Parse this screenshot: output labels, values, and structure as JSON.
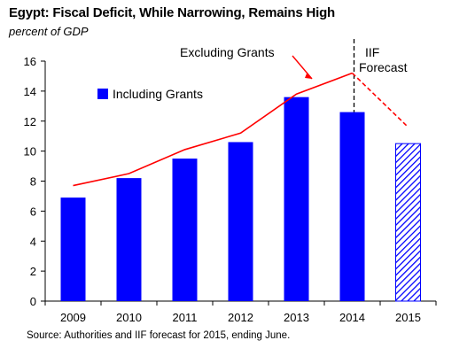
{
  "title": "Egypt: Fiscal Deficit, While Narrowing, Remains High",
  "subtitle": "percent of GDP",
  "source": "Source: Authorities and IIF forecast  for 2015, ending June.",
  "chart_data": {
    "type": "bar",
    "categories": [
      "2009",
      "2010",
      "2011",
      "2012",
      "2013",
      "2014",
      "2015"
    ],
    "ylim": [
      0,
      16
    ],
    "yticks": [
      0,
      2,
      4,
      6,
      8,
      10,
      12,
      14,
      16
    ],
    "grid": false,
    "series": [
      {
        "name": "Including Grants",
        "type": "bar",
        "color": "#0000ff",
        "values": [
          6.9,
          8.2,
          9.5,
          10.6,
          13.6,
          12.6,
          10.5
        ],
        "forecast": [
          false,
          false,
          false,
          false,
          false,
          false,
          true
        ]
      },
      {
        "name": "Excluding Grants",
        "type": "line",
        "color": "#ff0000",
        "values": [
          7.7,
          8.5,
          10.1,
          11.2,
          13.8,
          15.2,
          11.6
        ],
        "forecast": [
          false,
          false,
          false,
          false,
          false,
          false,
          true
        ]
      }
    ],
    "legend": {
      "position": "top-left",
      "label": "Including Grants"
    },
    "annotations": {
      "line_label": "Excluding Grants",
      "forecast_label_line1": "IIF",
      "forecast_label_line2": "Forecast",
      "forecast_divider_between": [
        "2014",
        "2015"
      ]
    }
  }
}
